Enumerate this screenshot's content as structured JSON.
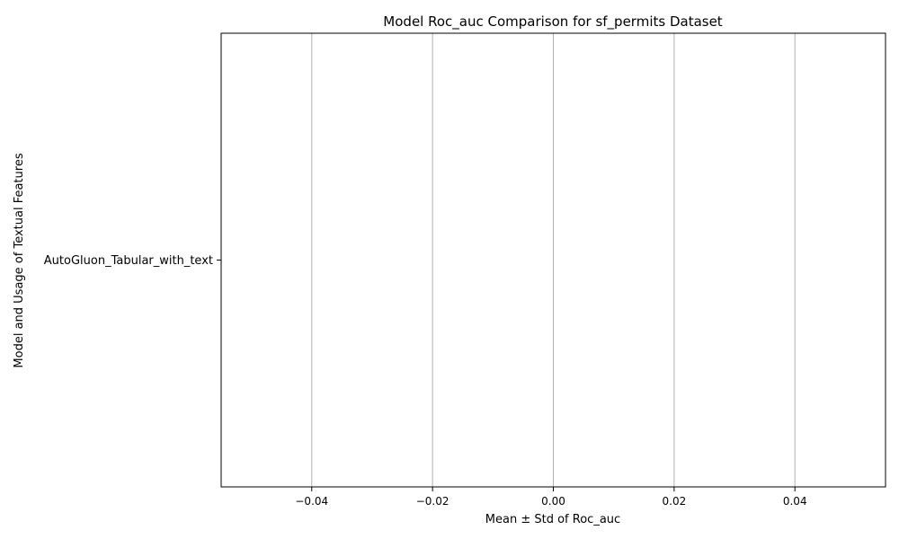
{
  "chart_data": {
    "type": "bar",
    "orientation": "horizontal",
    "title": "Model Roc_auc Comparison for sf_permits Dataset",
    "xlabel": "Mean ± Std of Roc_auc",
    "ylabel": "Model and Usage of Textual Features",
    "categories": [
      "AutoGluon_Tabular_with_text"
    ],
    "values": [
      null
    ],
    "xlim": [
      -0.055,
      0.055
    ],
    "xticks": [
      -0.04,
      -0.02,
      0.0,
      0.02,
      0.04
    ],
    "xtick_labels": [
      "−0.04",
      "−0.02",
      "0.00",
      "0.02",
      "0.04"
    ],
    "grid": "vertical",
    "legend": "none"
  },
  "colors": {
    "axes": "#000000",
    "grid": "#b0b0b0",
    "background": "#ffffff"
  }
}
